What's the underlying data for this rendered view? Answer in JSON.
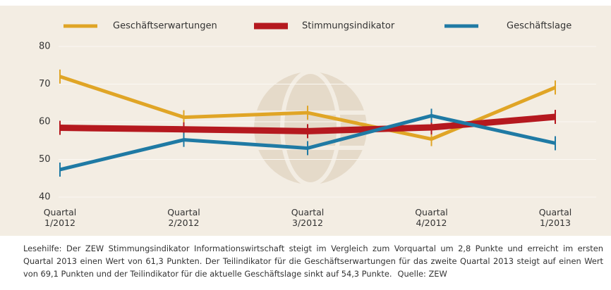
{
  "chart_data": {
    "type": "line",
    "categories": [
      "Quartal\n1/2012",
      "Quartal\n2/2012",
      "Quartal\n3/2012",
      "Quartal\n4/2012",
      "Quartal\n1/2013"
    ],
    "series": [
      {
        "name": "Geschäftserwartungen",
        "color": "#e0a526",
        "values": [
          72,
          61.2,
          62.4,
          55.4,
          69.1
        ]
      },
      {
        "name": "Stimmungsindikator",
        "color": "#b5191f",
        "values": [
          58.4,
          58,
          57.5,
          58.5,
          61.3
        ]
      },
      {
        "name": "Geschäftslage",
        "color": "#1f7aa4",
        "values": [
          47.3,
          55.2,
          53,
          61.6,
          54.3
        ]
      }
    ],
    "ylim": [
      40,
      80
    ],
    "yticks": [
      40,
      50,
      60,
      70,
      80
    ],
    "grid": true,
    "legend": "top",
    "note": "Lesehilfe: Der ZEW Stimmungsindikator Informationswirtschaft steigt im Vergleich zum Vorquartal um 2,8 Punkte und erreicht im ersten Quartal 2013 einen Wert von 61,3 Punkten. Der Teilindikator für die Geschäftserwartungen für das zweite Quartal 2013 steigt auf einen Wert von 69,1 Punkten und der Teilindikator für die aktuelle Geschäftslage sinkt auf 54,3 Punkte.",
    "source": "Quelle: ZEW"
  }
}
